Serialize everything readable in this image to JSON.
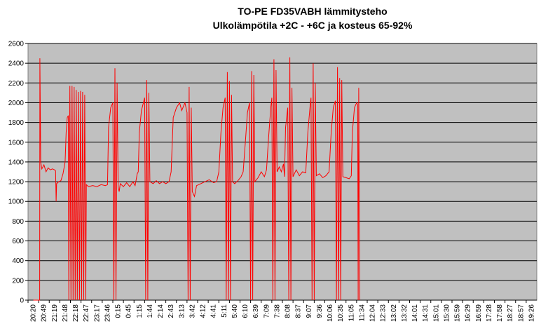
{
  "chart_data": {
    "type": "line",
    "title": "TO-PE FD35VABH lämmitysteho",
    "subtitle": "Ulkolämpötila  +2C - +6C ja kosteus 65-92%",
    "xlabel": "",
    "ylabel": "",
    "ylim": [
      0,
      2600
    ],
    "yticks": [
      0,
      200,
      400,
      600,
      800,
      1000,
      1200,
      1400,
      1600,
      1800,
      2000,
      2200,
      2400,
      2600
    ],
    "x_categories": [
      "20:20",
      "20:49",
      "21:19",
      "21:48",
      "22:18",
      "22:47",
      "23:17",
      "23:46",
      "0:15",
      "0:45",
      "1:15",
      "1:44",
      "2:14",
      "2:43",
      "3:13",
      "3:42",
      "4:12",
      "4:41",
      "5:11",
      "5:40",
      "6:10",
      "6:39",
      "7:09",
      "7:38",
      "8:08",
      "8:37",
      "9:07",
      "9:36",
      "10:06",
      "10:35",
      "11:05",
      "11:34",
      "12:04",
      "12:33",
      "13:02",
      "13:32",
      "14:01",
      "14:31",
      "15:01",
      "15:30",
      "15:59",
      "16:29",
      "16:59",
      "17:28",
      "17:58",
      "18:27",
      "18:57",
      "19:26"
    ],
    "grid": true,
    "legend": "none",
    "series": [
      {
        "color": "#ff0000",
        "points": [
          [
            0.0,
            0
          ],
          [
            0.6,
            0
          ],
          [
            0.62,
            2450
          ],
          [
            0.7,
            1400
          ],
          [
            0.8,
            1330
          ],
          [
            1.0,
            1370
          ],
          [
            1.2,
            1300
          ],
          [
            1.4,
            1340
          ],
          [
            1.6,
            1320
          ],
          [
            1.8,
            1330
          ],
          [
            2.0,
            1320
          ],
          [
            2.1,
            1310
          ],
          [
            2.15,
            1000
          ],
          [
            2.2,
            1180
          ],
          [
            2.4,
            1200
          ],
          [
            2.6,
            1210
          ],
          [
            2.8,
            1280
          ],
          [
            3.0,
            1400
          ],
          [
            3.1,
            1700
          ],
          [
            3.2,
            1850
          ],
          [
            3.3,
            1870
          ],
          [
            3.35,
            0
          ],
          [
            3.45,
            2170
          ],
          [
            3.55,
            0
          ],
          [
            3.65,
            2170
          ],
          [
            3.75,
            0
          ],
          [
            3.85,
            2160
          ],
          [
            3.95,
            0
          ],
          [
            4.05,
            2130
          ],
          [
            4.15,
            0
          ],
          [
            4.25,
            2110
          ],
          [
            4.35,
            0
          ],
          [
            4.45,
            2120
          ],
          [
            4.55,
            0
          ],
          [
            4.65,
            2110
          ],
          [
            4.75,
            0
          ],
          [
            4.85,
            2080
          ],
          [
            4.95,
            0
          ],
          [
            5.0,
            1170
          ],
          [
            5.2,
            1150
          ],
          [
            5.6,
            1160
          ],
          [
            6.0,
            1150
          ],
          [
            6.4,
            1170
          ],
          [
            6.8,
            1160
          ],
          [
            7.0,
            1170
          ],
          [
            7.1,
            1750
          ],
          [
            7.3,
            1950
          ],
          [
            7.5,
            2000
          ],
          [
            7.6,
            0
          ],
          [
            7.7,
            2350
          ],
          [
            7.8,
            0
          ],
          [
            7.9,
            2200
          ],
          [
            8.0,
            1140
          ],
          [
            8.1,
            1100
          ],
          [
            8.2,
            1180
          ],
          [
            8.5,
            1150
          ],
          [
            8.8,
            1190
          ],
          [
            9.1,
            1150
          ],
          [
            9.4,
            1200
          ],
          [
            9.6,
            1160
          ],
          [
            9.8,
            1280
          ],
          [
            9.9,
            1300
          ],
          [
            10.0,
            1700
          ],
          [
            10.2,
            1920
          ],
          [
            10.5,
            2050
          ],
          [
            10.6,
            0
          ],
          [
            10.7,
            2230
          ],
          [
            10.8,
            0
          ],
          [
            10.9,
            2100
          ],
          [
            11.0,
            1200
          ],
          [
            11.3,
            1180
          ],
          [
            11.6,
            1210
          ],
          [
            11.9,
            1180
          ],
          [
            12.2,
            1200
          ],
          [
            12.5,
            1180
          ],
          [
            12.8,
            1200
          ],
          [
            13.0,
            1300
          ],
          [
            13.2,
            1850
          ],
          [
            13.5,
            1950
          ],
          [
            13.8,
            2000
          ],
          [
            14.0,
            1920
          ],
          [
            14.3,
            2000
          ],
          [
            14.5,
            1900
          ],
          [
            14.6,
            0
          ],
          [
            14.7,
            2160
          ],
          [
            14.8,
            0
          ],
          [
            14.9,
            1950
          ],
          [
            15.0,
            1100
          ],
          [
            15.2,
            1050
          ],
          [
            15.4,
            1160
          ],
          [
            15.8,
            1180
          ],
          [
            16.2,
            1200
          ],
          [
            16.6,
            1220
          ],
          [
            17.0,
            1190
          ],
          [
            17.3,
            1200
          ],
          [
            17.5,
            1300
          ],
          [
            17.7,
            1700
          ],
          [
            17.9,
            1950
          ],
          [
            18.1,
            2050
          ],
          [
            18.2,
            0
          ],
          [
            18.3,
            2310
          ],
          [
            18.4,
            0
          ],
          [
            18.5,
            2220
          ],
          [
            18.6,
            0
          ],
          [
            18.7,
            2080
          ],
          [
            18.8,
            1200
          ],
          [
            19.0,
            1180
          ],
          [
            19.3,
            1210
          ],
          [
            19.6,
            1250
          ],
          [
            19.8,
            1300
          ],
          [
            20.0,
            1600
          ],
          [
            20.2,
            1900
          ],
          [
            20.4,
            2000
          ],
          [
            20.5,
            0
          ],
          [
            20.6,
            2320
          ],
          [
            20.7,
            0
          ],
          [
            20.8,
            2280
          ],
          [
            20.9,
            1200
          ],
          [
            21.2,
            1240
          ],
          [
            21.5,
            1300
          ],
          [
            21.8,
            1250
          ],
          [
            22.0,
            1320
          ],
          [
            22.2,
            1650
          ],
          [
            22.4,
            1950
          ],
          [
            22.5,
            2050
          ],
          [
            22.6,
            0
          ],
          [
            22.7,
            2440
          ],
          [
            22.8,
            0
          ],
          [
            22.9,
            2330
          ],
          [
            23.0,
            1300
          ],
          [
            23.2,
            1350
          ],
          [
            23.4,
            1300
          ],
          [
            23.6,
            1380
          ],
          [
            23.7,
            1250
          ],
          [
            23.8,
            1750
          ],
          [
            24.0,
            1950
          ],
          [
            24.1,
            0
          ],
          [
            24.2,
            2460
          ],
          [
            24.3,
            0
          ],
          [
            24.4,
            2150
          ],
          [
            24.5,
            1250
          ],
          [
            24.8,
            1320
          ],
          [
            25.1,
            1260
          ],
          [
            25.4,
            1300
          ],
          [
            25.7,
            1290
          ],
          [
            25.9,
            1700
          ],
          [
            26.1,
            1950
          ],
          [
            26.2,
            2050
          ],
          [
            26.3,
            0
          ],
          [
            26.4,
            2400
          ],
          [
            26.5,
            0
          ],
          [
            26.6,
            2200
          ],
          [
            26.7,
            1260
          ],
          [
            27.0,
            1280
          ],
          [
            27.3,
            1240
          ],
          [
            27.6,
            1260
          ],
          [
            27.9,
            1300
          ],
          [
            28.1,
            1700
          ],
          [
            28.3,
            1950
          ],
          [
            28.5,
            2020
          ],
          [
            28.6,
            0
          ],
          [
            28.7,
            2360
          ],
          [
            28.8,
            0
          ],
          [
            28.9,
            2250
          ],
          [
            29.0,
            0
          ],
          [
            29.1,
            2230
          ],
          [
            29.2,
            1250
          ],
          [
            29.5,
            1240
          ],
          [
            29.8,
            1230
          ],
          [
            30.0,
            1260
          ],
          [
            30.1,
            1700
          ],
          [
            30.3,
            1950
          ],
          [
            30.5,
            2000
          ],
          [
            30.6,
            1980
          ],
          [
            30.65,
            0
          ],
          [
            30.7,
            2150
          ],
          [
            30.8,
            0
          ]
        ]
      }
    ]
  }
}
